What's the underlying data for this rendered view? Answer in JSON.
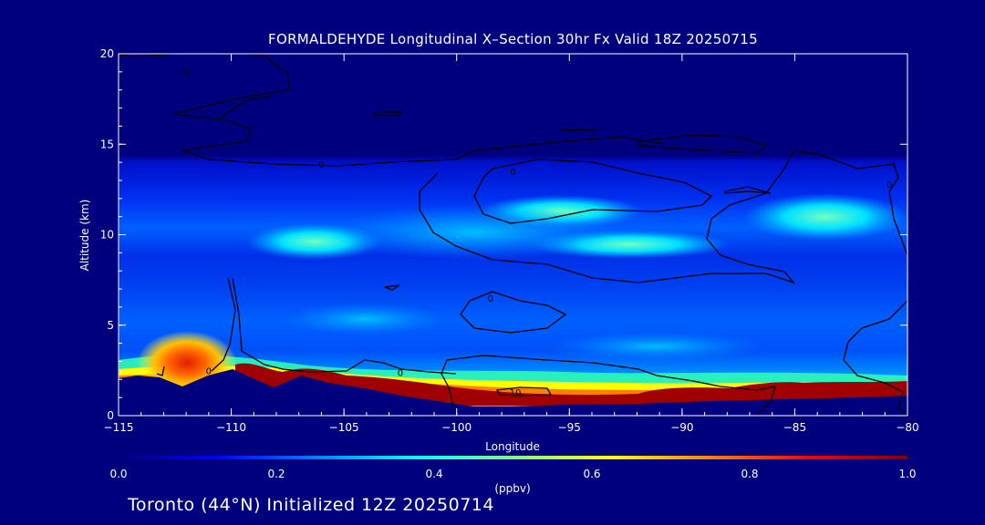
{
  "chart_data": {
    "type": "heatmap",
    "title": "FORMALDEHYDE Longitudinal X–Section 30hr  Fx Valid 18Z 20250715",
    "xlabel": "Longitude",
    "ylabel": "Altitude (km)",
    "xlim": [
      -115,
      -80
    ],
    "ylim": [
      0,
      20
    ],
    "x_ticks": [
      -115,
      -110,
      -105,
      -100,
      -95,
      -90,
      -85,
      -80
    ],
    "x_tick_labels": [
      "−115",
      "−110",
      "−105",
      "−100",
      "−95",
      "−90",
      "−85",
      "−80"
    ],
    "y_ticks": [
      0,
      5,
      10,
      15,
      20
    ],
    "y_tick_labels": [
      "0",
      "5",
      "10",
      "15",
      "20"
    ],
    "colorbar": {
      "label": "(ppbv)",
      "range": [
        0,
        1
      ],
      "ticks": [
        0,
        0.2,
        0.4,
        0.6,
        0.8,
        1.0
      ],
      "tick_labels": [
        "0.0",
        "0.2",
        "0.4",
        "0.6",
        "0.8",
        "1.0"
      ],
      "colors": [
        "#00007f",
        "#0000ff",
        "#0080ff",
        "#00ffff",
        "#80ff80",
        "#ffff00",
        "#ff8000",
        "#ff0000",
        "#800000"
      ]
    },
    "features": [
      {
        "name": "boundary-layer maximum",
        "lon": [
          -110,
          -80
        ],
        "alt": [
          0.6,
          2.0
        ],
        "value": 1.0
      },
      {
        "name": "western hotspot",
        "lon": -112,
        "alt": 2.5,
        "value": 0.85
      },
      {
        "name": "upper tropospheric band",
        "lon": [
          -108,
          -80
        ],
        "alt": [
          9,
          12
        ],
        "value": 0.45
      }
    ],
    "contours": [
      {
        "label": "0",
        "lon": -111,
        "alt": 2.5
      },
      {
        "label": "0",
        "lon": -102.5,
        "alt": 2.4
      },
      {
        "label": "0",
        "lon": -98.5,
        "alt": 6.5
      },
      {
        "label": "0",
        "lon": -106,
        "alt": 13.9
      },
      {
        "label": "0",
        "lon": -97.5,
        "alt": 13.5
      },
      {
        "label": "0",
        "lon": -112,
        "alt": 19
      },
      {
        "label": "0",
        "lon": -80.8,
        "alt": 12.8
      },
      {
        "label": "10",
        "lon": -97.4,
        "alt": 1.3
      }
    ]
  },
  "footer": {
    "text": "Toronto (44°N) Initialized 12Z 20250714"
  }
}
